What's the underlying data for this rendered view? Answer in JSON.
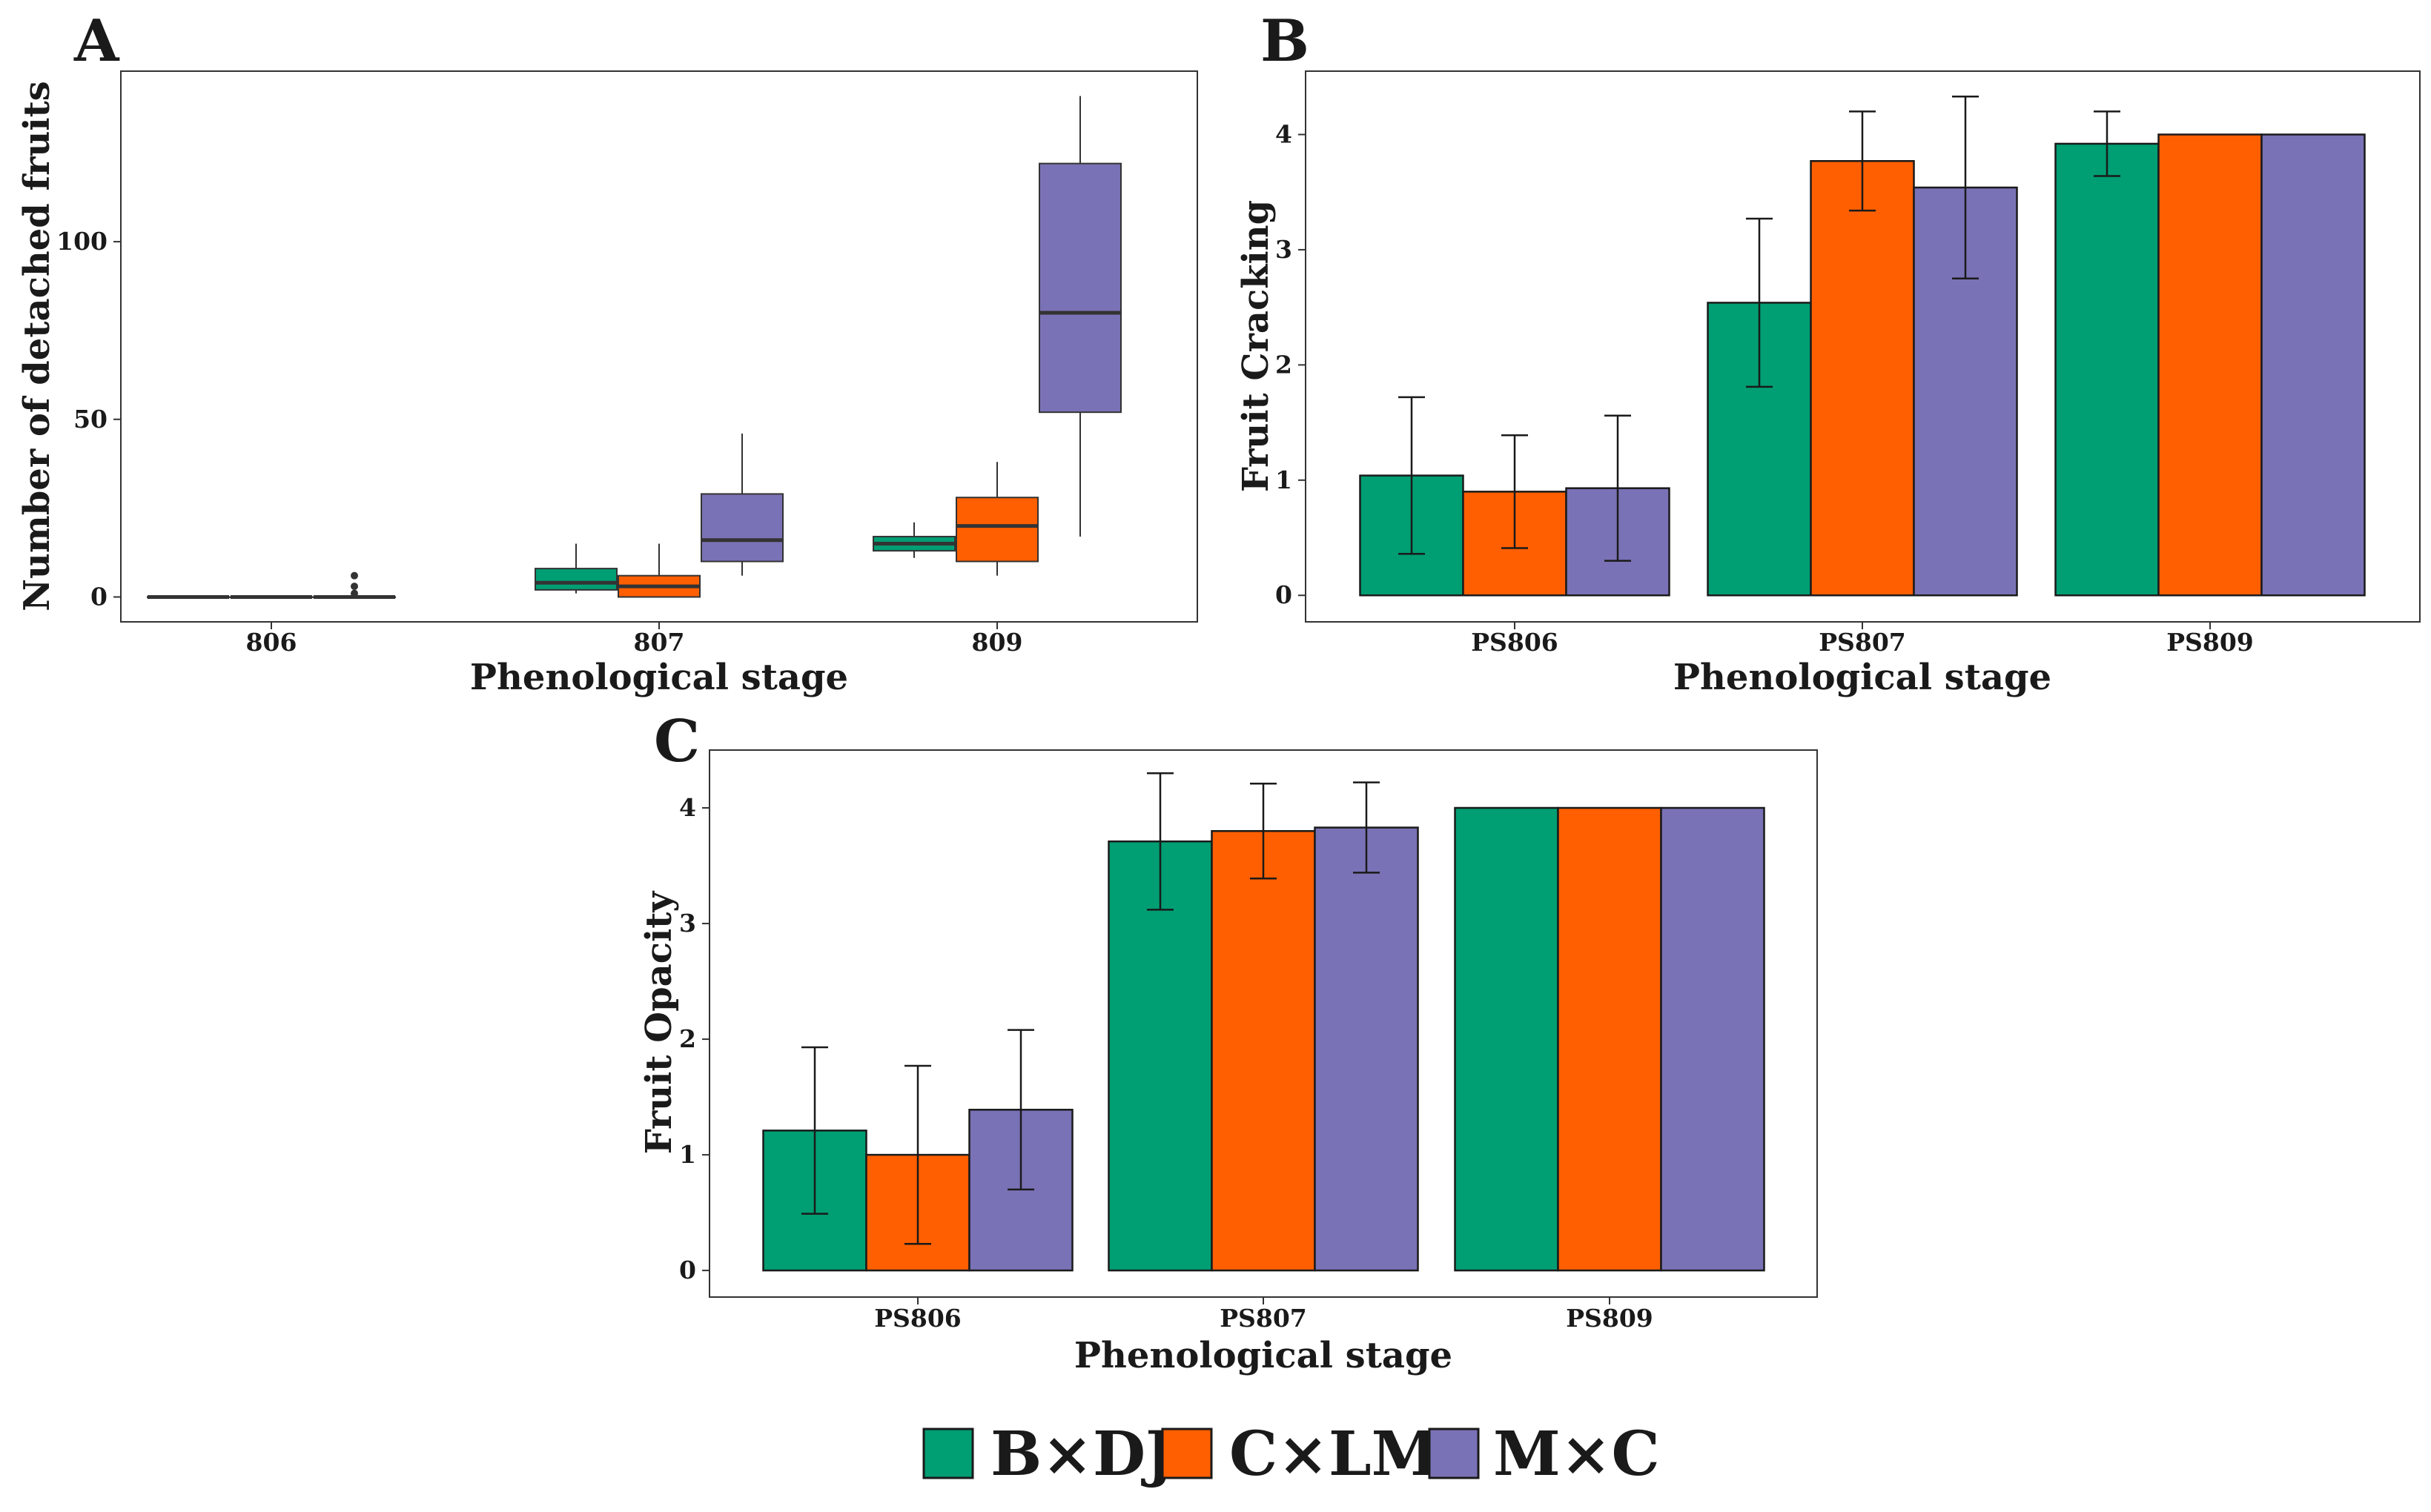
{
  "colors": {
    "bxdj": "#009e73",
    "cxlm": "#ff5f00",
    "mxc": "#7a72b6"
  },
  "legend": [
    {
      "label": "B×DJ",
      "color": "#009e73"
    },
    {
      "label": "C×LM",
      "color": "#ff5f00"
    },
    {
      "label": "M×C",
      "color": "#7a72b6"
    }
  ],
  "chart_data": [
    {
      "panel": "A",
      "type": "box",
      "xlabel": "Phenological stage",
      "ylabel": "Number of detached fruits",
      "categories": [
        "806",
        "807",
        "809"
      ],
      "yticks": [
        0,
        50,
        100
      ],
      "ylim": [
        -7,
        148
      ],
      "series": [
        {
          "name": "B×DJ",
          "boxes": [
            {
              "min": 0,
              "q1": 0,
              "median": 0,
              "q3": 0,
              "max": 0,
              "outliers": []
            },
            {
              "min": 1,
              "q1": 2,
              "median": 4,
              "q3": 8,
              "max": 15,
              "outliers": []
            },
            {
              "min": 11,
              "q1": 13,
              "median": 15,
              "q3": 17,
              "max": 21,
              "outliers": []
            }
          ]
        },
        {
          "name": "C×LM",
          "boxes": [
            {
              "min": 0,
              "q1": 0,
              "median": 0,
              "q3": 0,
              "max": 0,
              "outliers": []
            },
            {
              "min": 0,
              "q1": 0,
              "median": 3,
              "q3": 6,
              "max": 15,
              "outliers": []
            },
            {
              "min": 6,
              "q1": 10,
              "median": 20,
              "q3": 28,
              "max": 38,
              "outliers": []
            }
          ]
        },
        {
          "name": "M×C",
          "boxes": [
            {
              "min": 0,
              "q1": 0,
              "median": 0,
              "q3": 0,
              "max": 0,
              "outliers": [
                1,
                3,
                6
              ]
            },
            {
              "min": 6,
              "q1": 10,
              "median": 16,
              "q3": 29,
              "max": 46,
              "outliers": []
            },
            {
              "min": 17,
              "q1": 52,
              "median": 80,
              "q3": 122,
              "max": 141,
              "outliers": []
            }
          ]
        }
      ]
    },
    {
      "panel": "B",
      "type": "bar",
      "xlabel": "Phenological stage",
      "ylabel": "Fruit Cracking",
      "categories": [
        "PS806",
        "PS807",
        "PS809"
      ],
      "yticks": [
        0,
        1,
        2,
        3,
        4
      ],
      "ylim": [
        -0.23,
        4.55
      ],
      "series": [
        {
          "name": "B×DJ",
          "values": [
            1.04,
            2.54,
            3.92
          ],
          "errors": [
            0.68,
            0.73,
            0.28
          ]
        },
        {
          "name": "C×LM",
          "values": [
            0.9,
            3.77,
            4.0
          ],
          "errors": [
            0.49,
            0.43,
            0
          ]
        },
        {
          "name": "M×C",
          "values": [
            0.93,
            3.54,
            4.0
          ],
          "errors": [
            0.63,
            0.79,
            0
          ]
        }
      ]
    },
    {
      "panel": "C",
      "type": "bar",
      "xlabel": "Phenological stage",
      "ylabel": "Fruit Opacity",
      "categories": [
        "PS806",
        "PS807",
        "PS809"
      ],
      "yticks": [
        0,
        1,
        2,
        3,
        4
      ],
      "ylim": [
        -0.23,
        4.5
      ],
      "series": [
        {
          "name": "B×DJ",
          "values": [
            1.21,
            3.71,
            4.0
          ],
          "errors": [
            0.72,
            0.59,
            0
          ]
        },
        {
          "name": "C×LM",
          "values": [
            1.0,
            3.8,
            4.0
          ],
          "errors": [
            0.77,
            0.41,
            0
          ]
        },
        {
          "name": "M×C",
          "values": [
            1.39,
            3.83,
            4.0
          ],
          "errors": [
            0.69,
            0.39,
            0
          ]
        }
      ]
    }
  ]
}
